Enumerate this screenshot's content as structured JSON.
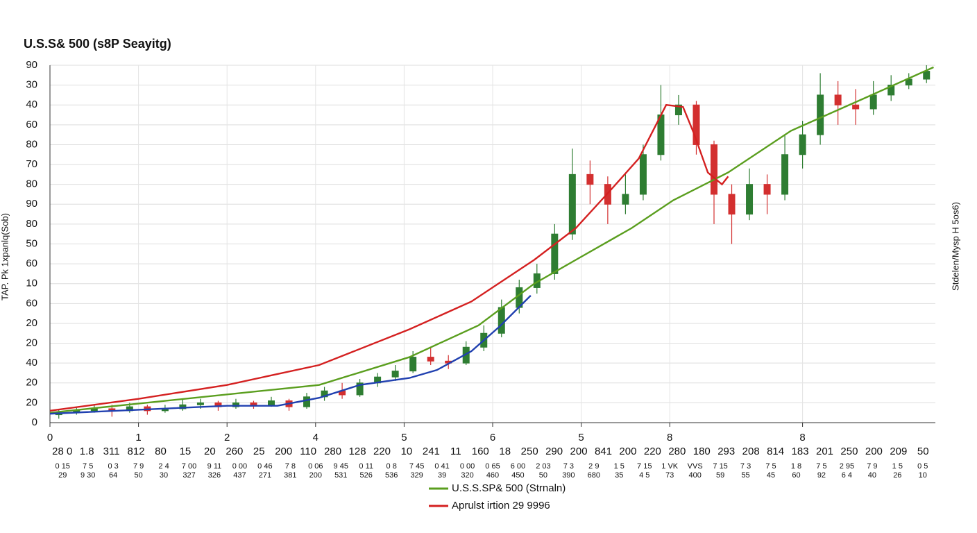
{
  "chart_data": {
    "type": "candlestick",
    "title": "U.S.S& 500 (s8P Seayitg)",
    "y_label": "TAP. Pk 1xpanlq(Sob)",
    "y2_label": "Stdelen/Mysp H 5os6)",
    "xlim": [
      0,
      100
    ],
    "ylim": [
      0,
      18
    ],
    "grid": true,
    "legend": "bottom",
    "yticks": [
      {
        "value": 18,
        "label": "90"
      },
      {
        "value": 17,
        "label": "30"
      },
      {
        "value": 16,
        "label": "40"
      },
      {
        "value": 15,
        "label": "60"
      },
      {
        "value": 14,
        "label": "80"
      },
      {
        "value": 13,
        "label": "70"
      },
      {
        "value": 12,
        "label": "80"
      },
      {
        "value": 11,
        "label": "90"
      },
      {
        "value": 10,
        "label": "80"
      },
      {
        "value": 9,
        "label": "50"
      },
      {
        "value": 8,
        "label": "60"
      },
      {
        "value": 7,
        "label": "10"
      },
      {
        "value": 6,
        "label": "60"
      },
      {
        "value": 5,
        "label": "20"
      },
      {
        "value": 4,
        "label": "20"
      },
      {
        "value": 3,
        "label": "40"
      },
      {
        "value": 2,
        "label": "20"
      },
      {
        "value": 1,
        "label": "20"
      },
      0
    ],
    "xticks": [
      0,
      {
        "value": 10,
        "label": "1"
      },
      {
        "value": 20,
        "label": "2"
      },
      {
        "value": 30,
        "label": "4"
      },
      {
        "value": 40,
        "label": "5"
      },
      {
        "value": 50,
        "label": "6"
      },
      {
        "value": 60,
        "label": "5"
      },
      {
        "value": 70,
        "label": "8"
      },
      {
        "value": 85,
        "label": "8"
      }
    ],
    "x_label_rows": [
      [
        "28 0",
        "1.8",
        "311",
        "812",
        "80",
        "15",
        "20",
        "260",
        "25",
        "200",
        "110",
        "280",
        "128",
        "220",
        "10",
        "241",
        "11",
        "160",
        "18",
        "250",
        "290",
        "200",
        "841",
        "200",
        "220",
        "280",
        "180",
        "293",
        "208",
        "814",
        "183",
        "201",
        "250",
        "200",
        "209",
        "50"
      ],
      [
        "0 15",
        "7 5",
        "0 3",
        "7 9",
        "2 4",
        "7 00",
        "9 11",
        "0 00",
        "0 46",
        "7 8",
        "0 06",
        "9 45",
        "0 11",
        "0 8",
        "7 45",
        "0 41",
        "0 00",
        "0 65",
        "6 00",
        "2 03",
        "7 3",
        "2 9",
        "1 5",
        "7 15",
        "1 VK",
        "VVS",
        "7 15",
        "7 3",
        "7 5",
        "1 8",
        "7 5",
        "2 95",
        "7 9",
        "1 5",
        "0 5"
      ],
      [
        "29",
        "9 30",
        "64",
        "50",
        "30",
        "327",
        "326",
        "437",
        "271",
        "381",
        "200",
        "531",
        "526",
        "536",
        "329",
        "39",
        "320",
        "460",
        "450",
        "50",
        "390",
        "680",
        "35",
        "4 5",
        "73",
        "400",
        "59",
        "55",
        "45",
        "60",
        "92",
        "6 4",
        "40",
        "26",
        "10"
      ]
    ],
    "candles": {
      "up_color": "#2e7d32",
      "down_color": "#d32f2f",
      "x": [
        1,
        3,
        5,
        7,
        9,
        11,
        13,
        15,
        17,
        19,
        21,
        23,
        25,
        27,
        29,
        31,
        33,
        35,
        37,
        39,
        41,
        43,
        45,
        47,
        49,
        51,
        53,
        55,
        57,
        59,
        61,
        63,
        65,
        67,
        69,
        71,
        73,
        75,
        77,
        79,
        81,
        83,
        85,
        87,
        89,
        91,
        93,
        95,
        97,
        99
      ],
      "open": [
        0.4,
        0.5,
        0.6,
        0.7,
        0.6,
        0.8,
        0.6,
        0.7,
        0.9,
        1.0,
        0.8,
        1.0,
        0.9,
        1.1,
        0.8,
        1.3,
        1.6,
        1.4,
        2.0,
        2.3,
        2.6,
        3.3,
        3.1,
        3.0,
        3.8,
        4.5,
        5.8,
        6.8,
        7.5,
        9.5,
        12.5,
        12.0,
        11.0,
        11.5,
        13.5,
        15.5,
        16.0,
        14.0,
        11.5,
        10.5,
        12.0,
        11.5,
        13.5,
        14.5,
        16.5,
        16.0,
        15.8,
        16.5,
        17.0,
        17.3
      ],
      "high": [
        0.7,
        0.8,
        0.9,
        0.9,
        1.0,
        0.9,
        0.9,
        1.2,
        1.2,
        1.1,
        1.2,
        1.1,
        1.3,
        1.2,
        1.5,
        1.8,
        2.0,
        2.2,
        2.5,
        2.9,
        3.6,
        3.8,
        3.4,
        4.1,
        4.9,
        6.2,
        7.2,
        8.0,
        10.0,
        13.8,
        13.2,
        12.4,
        12.5,
        14.0,
        17.0,
        16.5,
        16.2,
        14.2,
        12.0,
        12.8,
        12.5,
        14.5,
        15.2,
        17.6,
        17.2,
        16.8,
        17.2,
        17.5,
        17.6,
        18.0
      ],
      "low": [
        0.2,
        0.4,
        0.5,
        0.3,
        0.5,
        0.4,
        0.5,
        0.6,
        0.7,
        0.6,
        0.7,
        0.7,
        0.8,
        0.6,
        0.7,
        1.1,
        1.2,
        1.3,
        1.8,
        2.1,
        2.5,
        2.9,
        2.7,
        2.9,
        3.6,
        4.3,
        5.5,
        6.5,
        7.2,
        9.2,
        11.0,
        10.0,
        10.5,
        11.2,
        13.2,
        15.0,
        13.5,
        10.0,
        9.0,
        10.2,
        10.5,
        11.2,
        12.8,
        14.0,
        15.0,
        15.0,
        15.5,
        16.2,
        16.8,
        17.1
      ],
      "close": [
        0.5,
        0.6,
        0.7,
        0.6,
        0.8,
        0.6,
        0.7,
        0.9,
        1.0,
        0.8,
        1.0,
        0.9,
        1.1,
        0.8,
        1.3,
        1.6,
        1.4,
        2.0,
        2.3,
        2.6,
        3.3,
        3.1,
        3.0,
        3.8,
        4.5,
        5.8,
        6.8,
        7.5,
        9.5,
        12.5,
        12.0,
        11.0,
        11.5,
        13.5,
        15.5,
        16.0,
        14.0,
        11.5,
        10.5,
        12.0,
        11.5,
        13.5,
        14.5,
        16.5,
        16.0,
        15.8,
        16.5,
        17.0,
        17.3,
        17.7
      ]
    },
    "series": [
      {
        "name": "U.S.S.SP& 500 (Strnaln)",
        "color": "#5a9e1e",
        "x": [
          0,
          30.4,
          40.6,
          48.4,
          54.7,
          59.4,
          65.7,
          70.4,
          76.6,
          83.7,
          92.3,
          99.8
        ],
        "values": [
          0.5,
          1.9,
          3.3,
          4.9,
          7.0,
          8.2,
          9.8,
          11.2,
          12.6,
          14.7,
          16.4,
          17.9
        ]
      },
      {
        "name": "Aprulst irtion 29 9996",
        "color": "#d42020",
        "x": [
          0,
          10,
          20,
          30.4,
          40.6,
          47.6,
          54.7,
          59.4,
          63.3,
          66.5,
          69.6,
          71.5,
          72.7,
          74.3,
          75.9,
          76.6
        ],
        "values": [
          0.6,
          1.2,
          1.9,
          2.9,
          4.7,
          6.1,
          8.2,
          9.8,
          11.7,
          13.3,
          16.0,
          15.9,
          14.6,
          12.6,
          12.0,
          12.4
        ]
      },
      {
        "color": "#2040b0",
        "x": [
          0,
          10,
          20,
          25.7,
          30.4,
          35,
          40.6,
          43.7,
          47.6,
          50.8,
          54.3
        ],
        "values": [
          0.45,
          0.65,
          0.85,
          0.85,
          1.25,
          1.9,
          2.25,
          2.65,
          3.6,
          4.85,
          6.4
        ]
      }
    ]
  }
}
